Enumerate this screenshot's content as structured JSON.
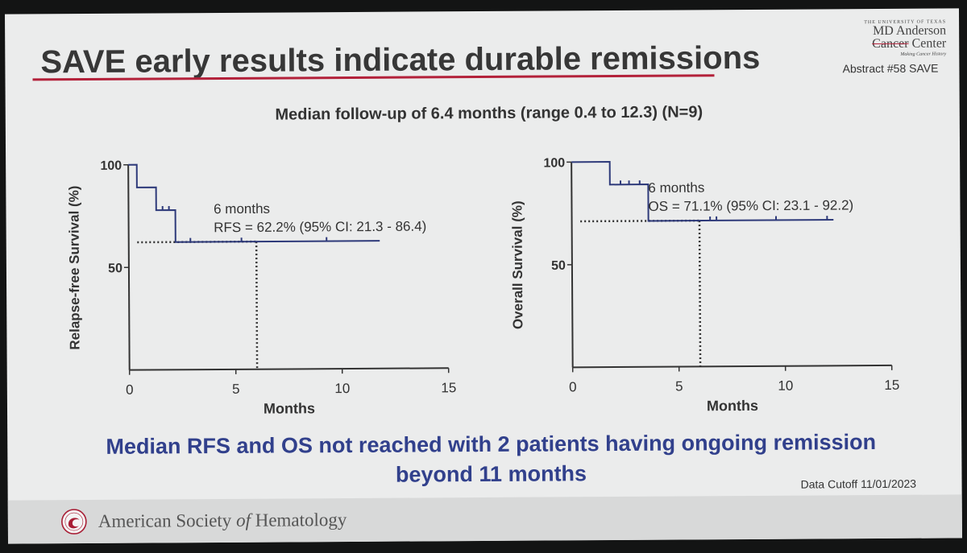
{
  "slide": {
    "title": "SAVE early results indicate durable remissions",
    "subtitle": "Median follow-up of 6.4 months (range 0.4 to 12.3) (N=9)",
    "conclusion_line1": "Median RFS and OS not reached with 2 patients having ongoing remission",
    "conclusion_line2": "beyond 11 months",
    "data_cutoff": "Data Cutoff 11/01/2023",
    "abstract": "Abstract #58 SAVE",
    "logo": {
      "pretitle": "THE UNIVERSITY OF TEXAS",
      "line1": "MD Anderson",
      "line2a": "Cancer",
      "line2b": " Center",
      "tagline": "Making Cancer History"
    },
    "footer": {
      "org_pre": "American Society ",
      "org_of": "of",
      "org_post": " Hematology"
    },
    "colors": {
      "accent_red": "#b3213a",
      "conclusion_blue": "#31408c",
      "curve": "#2e3a7a"
    }
  },
  "chart_data": [
    {
      "type": "line",
      "title": "",
      "xlabel": "Months",
      "ylabel": "Relapse-free Survival (%)",
      "xlim": [
        0,
        15
      ],
      "ylim": [
        0,
        100
      ],
      "xticks": [
        0,
        5,
        10,
        15
      ],
      "yticks": [
        50,
        100
      ],
      "steps": [
        [
          0,
          100
        ],
        [
          0.4,
          88.9
        ],
        [
          1.3,
          77.8
        ],
        [
          2.2,
          62.2
        ],
        [
          11.8,
          62.2
        ]
      ],
      "censors": [
        [
          1.6,
          77.8
        ],
        [
          1.9,
          77.8
        ],
        [
          2.9,
          62.2
        ],
        [
          5.3,
          62.2
        ],
        [
          9.3,
          62.2
        ]
      ],
      "landmark": {
        "x": 6,
        "y": 62.2
      },
      "annotation_line1": "6 months",
      "annotation_line2": "RFS = 62.2% (95% CI: 21.3 - 86.4)",
      "annotation_at": [
        4.0,
        76
      ]
    },
    {
      "type": "line",
      "title": "",
      "xlabel": "Months",
      "ylabel": "Overall Survival (%)",
      "xlim": [
        0,
        15
      ],
      "ylim": [
        0,
        100
      ],
      "xticks": [
        0,
        5,
        10,
        15
      ],
      "yticks": [
        50,
        100
      ],
      "steps": [
        [
          0,
          100
        ],
        [
          1.8,
          88.9
        ],
        [
          3.6,
          71.1
        ],
        [
          12.3,
          71.1
        ]
      ],
      "censors": [
        [
          2.3,
          88.9
        ],
        [
          2.7,
          88.9
        ],
        [
          3.2,
          88.9
        ],
        [
          6.5,
          71.1
        ],
        [
          6.8,
          71.1
        ],
        [
          9.6,
          71.1
        ],
        [
          12.0,
          71.1
        ]
      ],
      "landmark": {
        "x": 6,
        "y": 71.1
      },
      "annotation_line1": "6 months",
      "annotation_line2": "OS = 71.1% (95% CI: 23.1 - 92.2)",
      "annotation_at": [
        3.6,
        85
      ]
    }
  ]
}
